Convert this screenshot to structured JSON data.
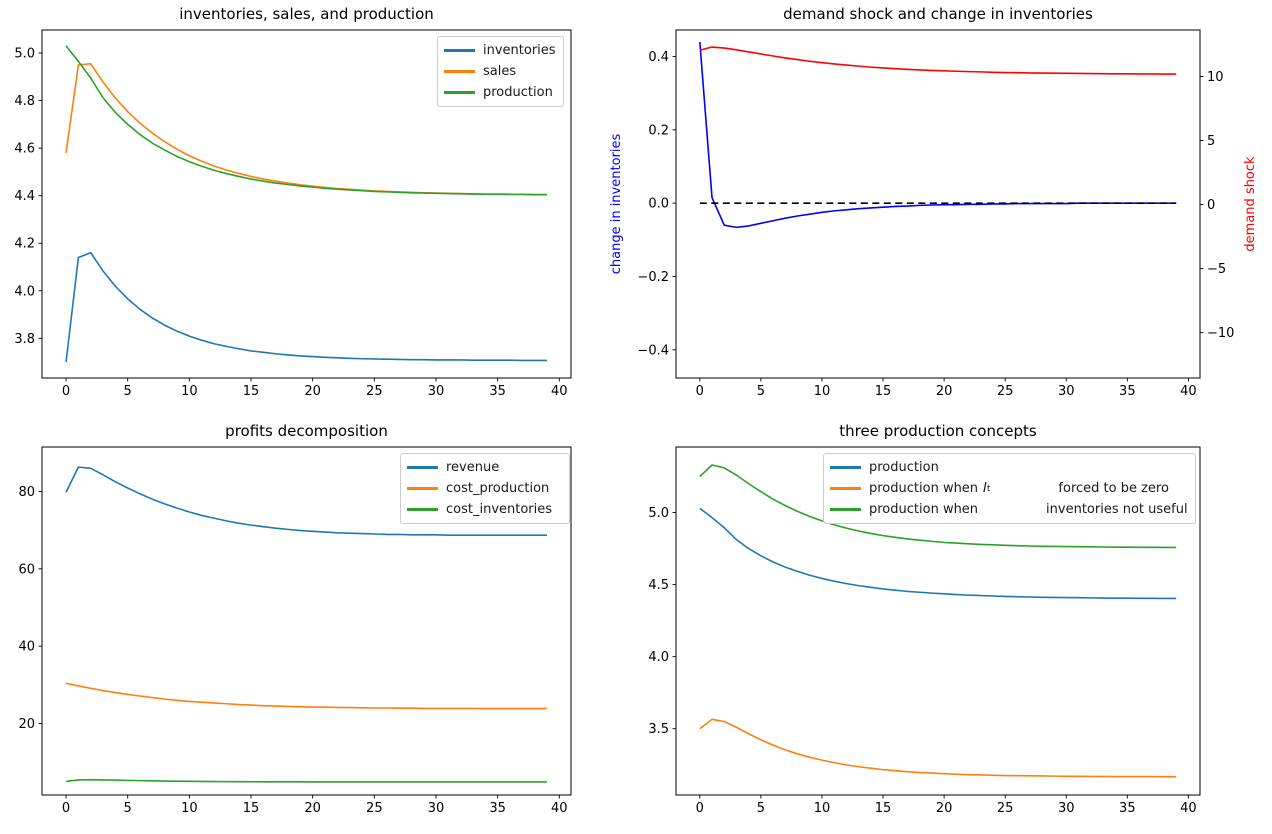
{
  "colors": {
    "mpl_blue": "#1f77b4",
    "mpl_orange": "#ff7f0e",
    "mpl_green": "#2ca02c",
    "blue": "#0000ff",
    "red": "#ff0000",
    "black": "#000000"
  },
  "x_values": [
    0,
    1,
    2,
    3,
    4,
    5,
    6,
    7,
    8,
    9,
    10,
    11,
    12,
    13,
    14,
    15,
    16,
    17,
    18,
    19,
    20,
    21,
    22,
    23,
    24,
    25,
    26,
    27,
    28,
    29,
    30,
    31,
    32,
    33,
    34,
    35,
    36,
    37,
    38,
    39
  ],
  "chart_data": [
    {
      "type": "line",
      "title": "inventories, sales, and production",
      "xlim": [
        -1.95,
        40.95
      ],
      "ylim": [
        3.633,
        5.097
      ],
      "xticks": {
        "values": [
          0,
          5,
          10,
          15,
          20,
          25,
          30,
          35,
          40
        ],
        "labels": [
          "0",
          "5",
          "10",
          "15",
          "20",
          "25",
          "30",
          "35",
          "40"
        ]
      },
      "yticks": {
        "values": [
          3.8,
          4.0,
          4.2,
          4.4,
          4.6,
          4.8,
          5.0
        ],
        "labels": [
          "3.8",
          "4.0",
          "4.2",
          "4.4",
          "4.6",
          "4.8",
          "5.0"
        ]
      },
      "legend_loc": "upper right",
      "legend": [
        {
          "label": "inventories"
        },
        {
          "label": "sales"
        },
        {
          "label": "production"
        }
      ],
      "series": [
        {
          "name": "inventories",
          "color": "mpl_blue",
          "values": [
            3.7,
            4.14,
            4.16,
            4.083,
            4.019,
            3.966,
            3.922,
            3.885,
            3.855,
            3.83,
            3.809,
            3.792,
            3.777,
            3.766,
            3.756,
            3.747,
            3.741,
            3.735,
            3.73,
            3.726,
            3.723,
            3.72,
            3.718,
            3.716,
            3.714,
            3.713,
            3.712,
            3.711,
            3.71,
            3.71,
            3.709,
            3.709,
            3.709,
            3.708,
            3.708,
            3.708,
            3.708,
            3.707,
            3.707,
            3.707
          ]
        },
        {
          "name": "sales",
          "color": "mpl_orange",
          "values": [
            4.58,
            4.95,
            4.955,
            4.878,
            4.811,
            4.754,
            4.705,
            4.663,
            4.627,
            4.595,
            4.568,
            4.545,
            4.525,
            4.508,
            4.494,
            4.481,
            4.47,
            4.461,
            4.453,
            4.446,
            4.44,
            4.435,
            4.43,
            4.427,
            4.423,
            4.42,
            4.418,
            4.416,
            4.414,
            4.412,
            4.411,
            4.41,
            4.409,
            4.408,
            4.407,
            4.407,
            4.406,
            4.406,
            4.405,
            4.405
          ]
        },
        {
          "name": "production",
          "color": "mpl_green",
          "values": [
            5.03,
            4.965,
            4.895,
            4.812,
            4.75,
            4.7,
            4.657,
            4.621,
            4.592,
            4.565,
            4.543,
            4.524,
            4.507,
            4.493,
            4.481,
            4.47,
            4.461,
            4.453,
            4.447,
            4.441,
            4.436,
            4.431,
            4.427,
            4.424,
            4.421,
            4.418,
            4.416,
            4.414,
            4.412,
            4.411,
            4.41,
            4.409,
            4.408,
            4.407,
            4.406,
            4.406,
            4.405,
            4.405,
            4.404,
            4.404
          ]
        }
      ]
    },
    {
      "type": "line",
      "title": "demand shock and change in inventories",
      "xlim": [
        -1.95,
        40.95
      ],
      "ylim": [
        -0.477,
        0.4725
      ],
      "ylim_right": [
        -13.54,
        13.63
      ],
      "xticks": {
        "values": [
          0,
          5,
          10,
          15,
          20,
          25,
          30,
          35,
          40
        ],
        "labels": [
          "0",
          "5",
          "10",
          "15",
          "20",
          "25",
          "30",
          "35",
          "40"
        ]
      },
      "yticks": {
        "values": [
          -0.4,
          -0.2,
          0.0,
          0.2,
          0.4
        ],
        "labels": [
          "−0.4",
          "−0.2",
          "0.0",
          "0.2",
          "0.4"
        ]
      },
      "yticks_right": {
        "values": [
          -10,
          -5,
          0,
          5,
          10
        ],
        "labels": [
          "−10",
          "−5",
          "0",
          "5",
          "10"
        ]
      },
      "ylabel_left": {
        "text": "change in inventories",
        "color": "blue"
      },
      "ylabel_right": {
        "text": "demand shock",
        "color": "red"
      },
      "zero_line": {
        "y": 0,
        "style": "dashed",
        "color": "black"
      },
      "series": [
        {
          "name": "change in inventories",
          "color": "blue",
          "axis": "left",
          "values": [
            0.44,
            0.015,
            -0.06,
            -0.066,
            -0.062,
            -0.055,
            -0.048,
            -0.041,
            -0.035,
            -0.03,
            -0.025,
            -0.021,
            -0.018,
            -0.015,
            -0.013,
            -0.011,
            -0.009,
            -0.008,
            -0.006,
            -0.005,
            -0.004,
            -0.004,
            -0.003,
            -0.003,
            -0.002,
            -0.002,
            -0.001,
            -0.001,
            -0.001,
            -0.001,
            -0.001,
            0.0,
            0.0,
            0.0,
            0.0,
            0.0,
            0.0,
            0.0,
            0.0,
            0.0
          ]
        },
        {
          "name": "demand shock",
          "color": "red",
          "axis": "right",
          "values": [
            12.05,
            12.3,
            12.22,
            12.08,
            11.92,
            11.76,
            11.6,
            11.45,
            11.32,
            11.19,
            11.08,
            10.98,
            10.89,
            10.81,
            10.73,
            10.67,
            10.61,
            10.56,
            10.51,
            10.47,
            10.44,
            10.41,
            10.38,
            10.36,
            10.33,
            10.31,
            10.3,
            10.28,
            10.27,
            10.26,
            10.25,
            10.24,
            10.23,
            10.22,
            10.21,
            10.21,
            10.2,
            10.2,
            10.19,
            10.19
          ]
        }
      ]
    },
    {
      "type": "line",
      "title": "profits decomposition",
      "xlim": [
        -1.95,
        40.95
      ],
      "ylim": [
        1.5,
        91.5
      ],
      "xticks": {
        "values": [
          0,
          5,
          10,
          15,
          20,
          25,
          30,
          35,
          40
        ],
        "labels": [
          "0",
          "5",
          "10",
          "15",
          "20",
          "25",
          "30",
          "35",
          "40"
        ]
      },
      "yticks": {
        "values": [
          20,
          40,
          60,
          80
        ],
        "labels": [
          "20",
          "40",
          "60",
          "80"
        ]
      },
      "legend_loc": "upper right",
      "legend": [
        {
          "label": "revenue"
        },
        {
          "label": "cost_production"
        },
        {
          "label": "cost_inventories"
        }
      ],
      "series": [
        {
          "name": "revenue",
          "color": "mpl_blue",
          "values": [
            79.8,
            86.3,
            86.0,
            84.3,
            82.5,
            80.9,
            79.4,
            78.0,
            76.8,
            75.7,
            74.7,
            73.8,
            73.1,
            72.4,
            71.8,
            71.3,
            70.9,
            70.5,
            70.2,
            69.9,
            69.7,
            69.5,
            69.3,
            69.2,
            69.1,
            69.0,
            68.9,
            68.9,
            68.8,
            68.8,
            68.8,
            68.7,
            68.7,
            68.7,
            68.7,
            68.7,
            68.7,
            68.7,
            68.7,
            68.7
          ]
        },
        {
          "name": "cost_production",
          "color": "mpl_orange",
          "values": [
            30.4,
            29.7,
            29.1,
            28.5,
            28.0,
            27.5,
            27.1,
            26.7,
            26.3,
            26.0,
            25.7,
            25.5,
            25.3,
            25.1,
            24.9,
            24.75,
            24.6,
            24.5,
            24.4,
            24.3,
            24.25,
            24.2,
            24.15,
            24.1,
            24.05,
            24.0,
            24.0,
            23.95,
            23.95,
            23.9,
            23.9,
            23.9,
            23.9,
            23.9,
            23.85,
            23.85,
            23.85,
            23.85,
            23.85,
            23.85
          ]
        },
        {
          "name": "cost_inventories",
          "color": "mpl_green",
          "values": [
            5.0,
            5.4,
            5.45,
            5.4,
            5.35,
            5.28,
            5.22,
            5.16,
            5.11,
            5.07,
            5.03,
            5.0,
            4.98,
            4.96,
            4.94,
            4.93,
            4.92,
            4.91,
            4.9,
            4.9,
            4.89,
            4.89,
            4.88,
            4.88,
            4.88,
            4.88,
            4.88,
            4.88,
            4.88,
            4.88,
            4.88,
            4.88,
            4.88,
            4.88,
            4.88,
            4.88,
            4.88,
            4.88,
            4.88,
            4.88
          ]
        }
      ]
    },
    {
      "type": "line",
      "title": "three production concepts",
      "xlim": [
        -1.95,
        40.95
      ],
      "ylim": [
        3.04,
        5.455
      ],
      "xticks": {
        "values": [
          0,
          5,
          10,
          15,
          20,
          25,
          30,
          35,
          40
        ],
        "labels": [
          "0",
          "5",
          "10",
          "15",
          "20",
          "25",
          "30",
          "35",
          "40"
        ]
      },
      "yticks": {
        "values": [
          3.5,
          4.0,
          4.5,
          5.0
        ],
        "labels": [
          "3.5",
          "4.0",
          "4.5",
          "5.0"
        ]
      },
      "legend_loc": "upper right",
      "legend": [
        {
          "label": "production"
        },
        {
          "pre": "production when",
          "math_base": "I",
          "math_sub": "t",
          "post": "forced to be zero"
        },
        {
          "pre": "production when",
          "post": "inventories not useful"
        }
      ],
      "series": [
        {
          "name": "production",
          "color": "mpl_blue",
          "values": [
            5.03,
            4.965,
            4.895,
            4.812,
            4.75,
            4.7,
            4.657,
            4.621,
            4.592,
            4.565,
            4.543,
            4.524,
            4.507,
            4.493,
            4.481,
            4.47,
            4.461,
            4.453,
            4.447,
            4.441,
            4.436,
            4.431,
            4.427,
            4.424,
            4.421,
            4.418,
            4.416,
            4.414,
            4.412,
            4.411,
            4.41,
            4.409,
            4.408,
            4.407,
            4.406,
            4.406,
            4.405,
            4.405,
            4.404,
            4.404
          ]
        },
        {
          "name": "production when It forced to be zero",
          "color": "mpl_orange",
          "values": [
            3.5,
            3.565,
            3.55,
            3.51,
            3.465,
            3.423,
            3.386,
            3.353,
            3.325,
            3.302,
            3.282,
            3.264,
            3.249,
            3.236,
            3.226,
            3.216,
            3.209,
            3.202,
            3.196,
            3.192,
            3.188,
            3.184,
            3.181,
            3.179,
            3.177,
            3.175,
            3.174,
            3.173,
            3.172,
            3.171,
            3.17,
            3.17,
            3.169,
            3.169,
            3.168,
            3.168,
            3.168,
            3.168,
            3.167,
            3.167
          ]
        },
        {
          "name": "production when inventories not useful",
          "color": "mpl_green",
          "values": [
            5.25,
            5.33,
            5.31,
            5.26,
            5.2,
            5.145,
            5.093,
            5.048,
            5.008,
            4.973,
            4.942,
            4.915,
            4.892,
            4.872,
            4.855,
            4.84,
            4.828,
            4.817,
            4.808,
            4.8,
            4.793,
            4.788,
            4.783,
            4.779,
            4.776,
            4.773,
            4.77,
            4.768,
            4.766,
            4.765,
            4.764,
            4.763,
            4.762,
            4.761,
            4.76,
            4.76,
            4.759,
            4.759,
            4.758,
            4.758
          ]
        }
      ]
    }
  ]
}
